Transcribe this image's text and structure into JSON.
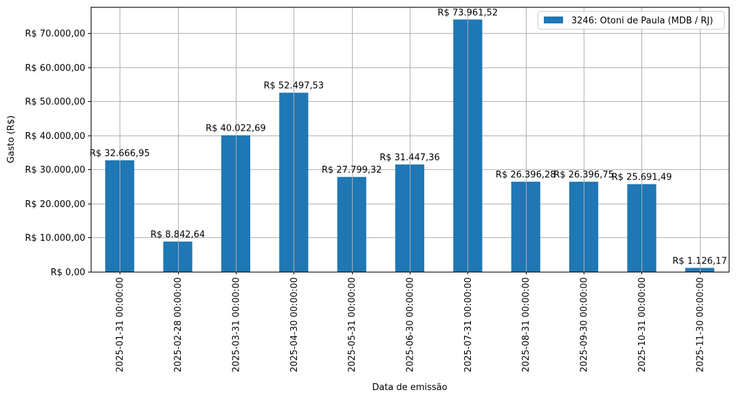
{
  "chart_data": {
    "type": "bar",
    "title": "",
    "xlabel": "Data de emissão",
    "ylabel": "Gasto (R$)",
    "ylim": [
      0,
      77660
    ],
    "grid": true,
    "legend_position": "upper right",
    "series": [
      {
        "name": "3246: Otoni de Paula (MDB / RJ)",
        "color": "#1f77b4",
        "values": [
          32666.95,
          8842.64,
          40022.69,
          52497.53,
          27799.32,
          31447.36,
          73961.52,
          26396.28,
          26396.75,
          25691.49,
          1126.17
        ],
        "labels": [
          "R$ 32.666,95",
          "R$ 8.842,64",
          "R$ 40.022,69",
          "R$ 52.497,53",
          "R$ 27.799,32",
          "R$ 31.447,36",
          "R$ 73.961,52",
          "R$ 26.396,28",
          "R$ 26.396,75",
          "R$ 25.691,49",
          "R$ 1.126,17"
        ]
      }
    ],
    "categories": [
      "2025-01-31 00:00:00",
      "2025-02-28 00:00:00",
      "2025-03-31 00:00:00",
      "2025-04-30 00:00:00",
      "2025-05-31 00:00:00",
      "2025-06-30 00:00:00",
      "2025-07-31 00:00:00",
      "2025-08-31 00:00:00",
      "2025-09-30 00:00:00",
      "2025-10-31 00:00:00",
      "2025-11-30 00:00:00"
    ],
    "yticks": [
      0,
      10000,
      20000,
      30000,
      40000,
      50000,
      60000,
      70000
    ],
    "ytick_labels": [
      "R$ 0,00",
      "R$ 10.000,00",
      "R$ 20.000,00",
      "R$ 30.000,00",
      "R$ 40.000,00",
      "R$ 50.000,00",
      "R$ 60.000,00",
      "R$ 70.000,00"
    ]
  }
}
